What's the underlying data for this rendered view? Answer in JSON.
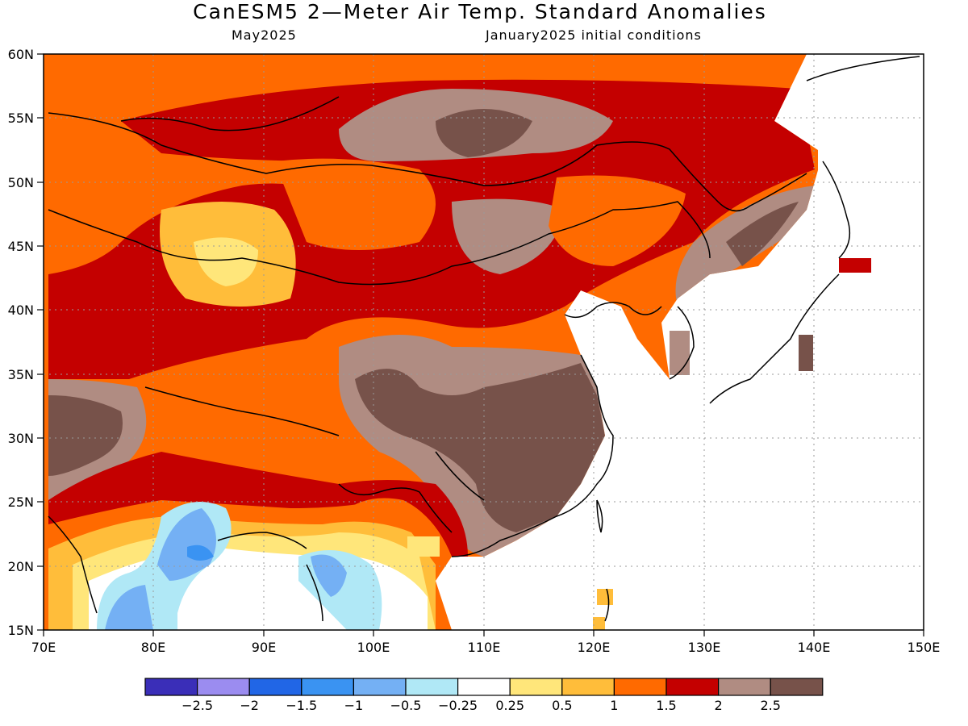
{
  "header": {
    "title": "CanESM5 2—Meter Air Temp. Standard Anomalies",
    "target_month": "May2025",
    "init_conditions": "January2025 initial conditions"
  },
  "axes": {
    "lon_labels": [
      "70E",
      "80E",
      "90E",
      "100E",
      "110E",
      "120E",
      "130E",
      "140E",
      "150E"
    ],
    "lat_labels": [
      "60N",
      "55N",
      "50N",
      "45N",
      "40N",
      "35N",
      "30N",
      "25N",
      "20N",
      "15N"
    ]
  },
  "colorbar": {
    "labels": [
      "−2.5",
      "−2",
      "−1.5",
      "−1",
      "−0.5",
      "−0.25",
      "0.25",
      "0.5",
      "1",
      "1.5",
      "2",
      "2.5"
    ],
    "colors": [
      "#3a2eb8",
      "#9b8cf0",
      "#2166e6",
      "#3a93f2",
      "#74b0f4",
      "#b0e8f6",
      "#ffffff",
      "#ffe67a",
      "#ffbd3a",
      "#ff6a00",
      "#c40000",
      "#b08c82",
      "#77524a"
    ]
  },
  "chart_data": {
    "type": "heatmap",
    "title": "CanESM5 2—Meter Air Temp. Standard Anomalies",
    "subtitle_left": "May2025",
    "subtitle_right": "January2025 initial conditions",
    "lon_range": [
      70,
      150
    ],
    "lat_range": [
      15,
      60
    ],
    "gridlines": true,
    "legend_placement": "bottom",
    "contour_levels": [
      -2.5,
      -2,
      -1.5,
      -1,
      -0.5,
      -0.25,
      0.25,
      0.5,
      1,
      1.5,
      2,
      2.5
    ]
  }
}
